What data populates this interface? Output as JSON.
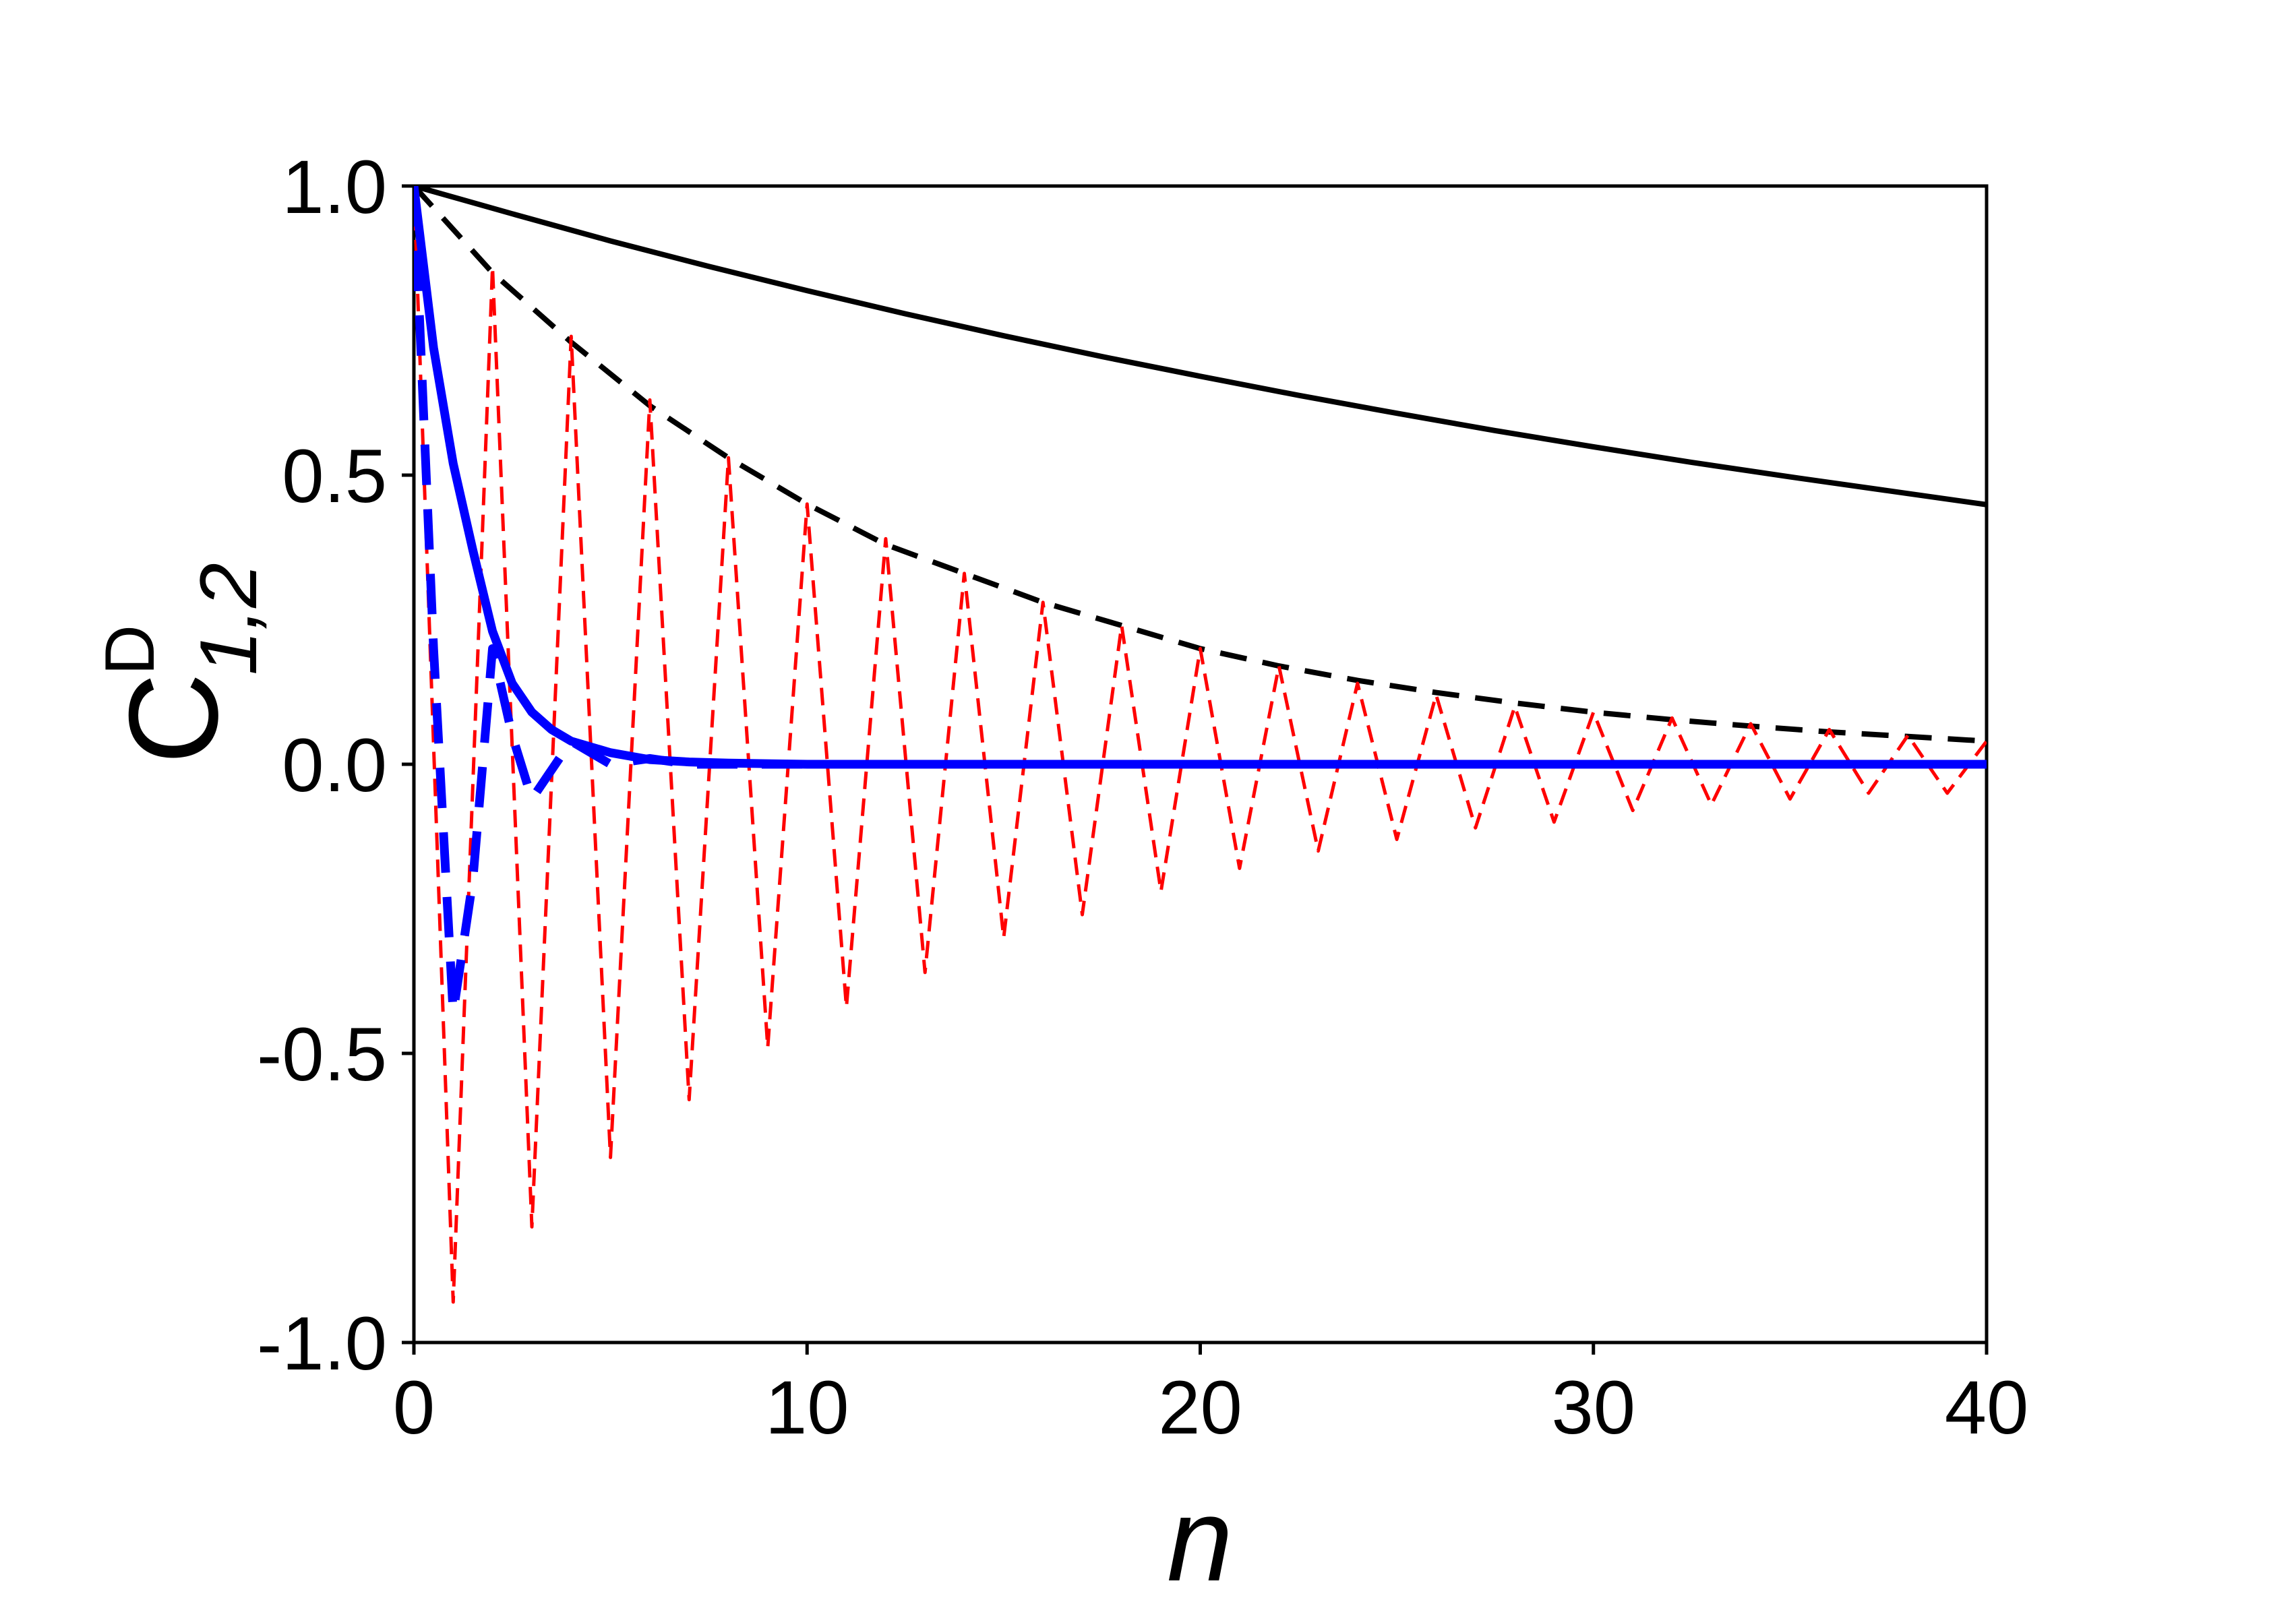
{
  "chart_data": {
    "type": "line",
    "title": "",
    "xlabel": "n",
    "ylabel": {
      "base": "C",
      "superscript": "D",
      "subscript": "1,2"
    },
    "xlim": [
      0,
      40
    ],
    "ylim": [
      -1.0,
      1.0
    ],
    "x_ticks": [
      0,
      10,
      20,
      30,
      40
    ],
    "x_tick_labels": [
      "0",
      "10",
      "20",
      "30",
      "40"
    ],
    "y_ticks": [
      1.0,
      0.5,
      0.0,
      -0.5,
      -1.0
    ],
    "y_tick_labels": [
      "1.0",
      "0.5",
      "0.0",
      "-0.5",
      "-1.0"
    ],
    "grid": false,
    "legend": "none",
    "series": [
      {
        "color": "#000000",
        "line_style": "solid",
        "x": [
          0,
          2.5,
          5,
          7.5,
          10,
          12.5,
          15,
          17.5,
          20,
          22.5,
          25,
          27.5,
          30,
          32.5,
          35,
          37.5,
          40
        ],
        "y": [
          1.0,
          0.952,
          0.905,
          0.861,
          0.819,
          0.779,
          0.741,
          0.705,
          0.671,
          0.638,
          0.607,
          0.577,
          0.549,
          0.522,
          0.497,
          0.473,
          0.449
        ]
      },
      {
        "color": "#000000",
        "line_style": "dashed",
        "x": [
          0,
          2,
          4,
          6,
          8,
          10,
          12,
          14,
          16,
          18,
          20,
          22,
          24,
          26,
          28,
          30,
          32,
          34,
          36,
          38,
          40
        ],
        "y": [
          1.0,
          0.85,
          0.73,
          0.62,
          0.53,
          0.45,
          0.38,
          0.33,
          0.28,
          0.24,
          0.2,
          0.17,
          0.145,
          0.124,
          0.106,
          0.09,
          0.077,
          0.066,
          0.056,
          0.048,
          0.04
        ]
      },
      {
        "color": "#ff0000",
        "line_style": "short-dashed",
        "x": [
          0,
          1,
          2,
          3,
          4,
          5,
          6,
          7,
          8,
          9,
          10,
          11,
          12,
          13,
          14,
          15,
          16,
          17,
          18,
          19,
          20,
          21,
          22,
          23,
          24,
          25,
          26,
          27,
          28,
          29,
          30,
          31,
          32,
          33,
          34,
          35,
          36,
          37,
          38,
          39,
          40
        ],
        "y": [
          1.0,
          -0.93,
          0.86,
          -0.8,
          0.74,
          -0.68,
          0.63,
          -0.58,
          0.53,
          -0.49,
          0.45,
          -0.42,
          0.39,
          -0.36,
          0.33,
          -0.3,
          0.28,
          -0.26,
          0.24,
          -0.22,
          0.2,
          -0.18,
          0.17,
          -0.15,
          0.14,
          -0.13,
          0.12,
          -0.11,
          0.1,
          -0.1,
          0.09,
          -0.08,
          0.08,
          -0.07,
          0.07,
          -0.06,
          0.06,
          -0.05,
          0.05,
          -0.05,
          0.04
        ]
      },
      {
        "color": "#0000ff",
        "line_style": "solid",
        "x": [
          0,
          0.5,
          1,
          1.5,
          2,
          2.5,
          3,
          3.5,
          4,
          5,
          6,
          7,
          8,
          10,
          15,
          20,
          25,
          30,
          35,
          40
        ],
        "y": [
          1.0,
          0.72,
          0.52,
          0.37,
          0.23,
          0.14,
          0.09,
          0.06,
          0.04,
          0.02,
          0.008,
          0.004,
          0.002,
          0.0,
          0.0,
          0.0,
          0.0,
          0.0,
          0.0,
          0.0
        ]
      },
      {
        "color": "#0000ff",
        "line_style": "long-dashed",
        "x": [
          0,
          0.5,
          1,
          1.5,
          2,
          2.5,
          3,
          3.5,
          4,
          5,
          6,
          7,
          8,
          10,
          15,
          20,
          25,
          30,
          35,
          40
        ],
        "y": [
          1.0,
          0.2,
          -0.43,
          -0.2,
          0.2,
          0.05,
          -0.06,
          -0.01,
          0.04,
          0.0,
          0.01,
          0.0,
          0.0,
          0.0,
          0.0,
          0.0,
          0.0,
          0.0,
          0.0,
          0.0
        ]
      }
    ]
  }
}
